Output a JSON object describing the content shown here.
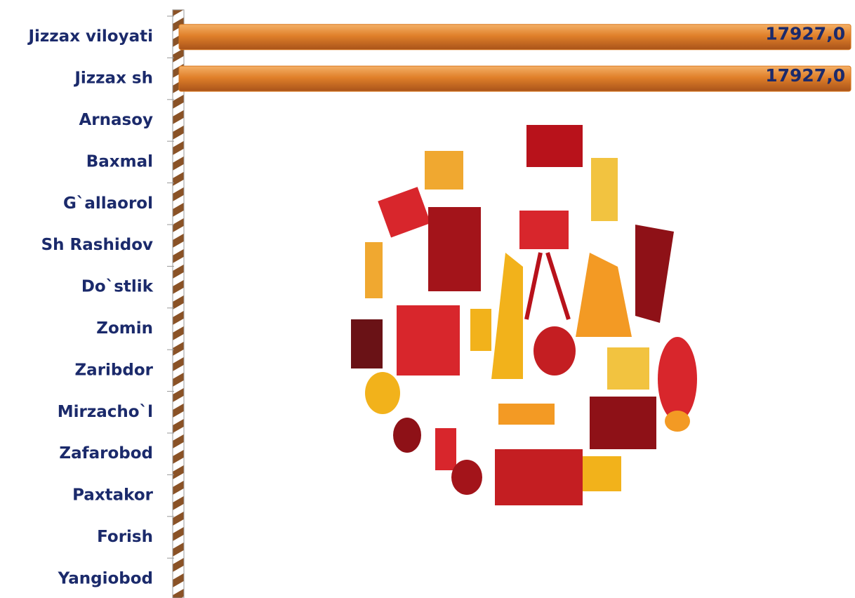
{
  "chart_data": {
    "type": "bar",
    "orientation": "horizontal",
    "categories": [
      "Jizzax viloyati",
      "Jizzax sh",
      "Arnasoy",
      "Baxmal",
      "G`allaorol",
      "Sh Rashidov",
      "Do`stlik",
      "Zomin",
      "Zaribdor",
      "Mirzacho`l",
      "Zafarobod",
      "Paxtakor",
      "Forish",
      "Yangiobod"
    ],
    "values": [
      17927.0,
      17927.0,
      0,
      0,
      0,
      0,
      0,
      0,
      0,
      0,
      0,
      0,
      0,
      0
    ],
    "value_labels": [
      "17927,0",
      "17927,0",
      null,
      null,
      null,
      null,
      null,
      null,
      null,
      null,
      null,
      null,
      null,
      null
    ],
    "color": "#d9781e",
    "xlim": [
      0,
      18000
    ]
  }
}
